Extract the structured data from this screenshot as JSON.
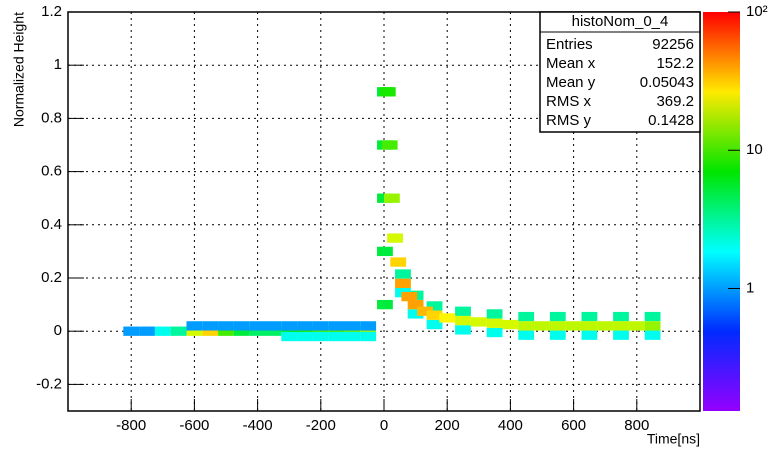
{
  "chart_data": {
    "type": "heatmap",
    "x_label": "Time[ns]",
    "y_label": "Normalized Height",
    "xlim": [
      -1000,
      1000
    ],
    "xticks": [
      -800,
      -600,
      -400,
      -200,
      0,
      200,
      400,
      600,
      800
    ],
    "ylim": [
      -0.3,
      1.2
    ],
    "yticks": [
      -0.2,
      0,
      0.2,
      0.4,
      0.6,
      0.8,
      1,
      1.2
    ],
    "zlim": [
      0.13,
      100
    ],
    "zlog": true,
    "zticks": [
      1,
      10,
      {
        "value": 100,
        "label": "10²"
      }
    ],
    "grid": true,
    "cells": {
      "x": [
        -800,
        -750,
        -700,
        -650,
        -600,
        -550,
        -500,
        -450,
        -400,
        -350,
        -300,
        -250,
        -200,
        -150,
        -100,
        -50,
        -600,
        -550,
        -500,
        -450,
        -400,
        -350,
        -300,
        -250,
        -200,
        -150,
        -100,
        -50,
        -300,
        -250,
        -200,
        -150,
        -100,
        -50,
        3,
        3,
        3,
        3,
        3,
        60,
        100,
        160,
        250,
        350,
        450,
        550,
        650,
        750,
        850,
        60,
        100,
        160,
        250,
        350,
        450,
        550,
        650,
        750,
        850,
        12,
        18,
        25,
        35,
        45,
        60,
        80,
        100,
        130,
        160,
        200,
        250,
        300,
        350,
        400,
        450,
        500,
        550,
        600,
        650,
        700,
        750,
        800,
        850
      ],
      "y": [
        0,
        0,
        0,
        0,
        0,
        0,
        0,
        0,
        0,
        0,
        0,
        0,
        0,
        0,
        0,
        0,
        0.02,
        0.02,
        0.02,
        0.02,
        0.02,
        0.02,
        0.02,
        0.02,
        0.02,
        0.02,
        0.02,
        0.02,
        -0.02,
        -0.02,
        -0.02,
        -0.02,
        -0.02,
        -0.02,
        0.1,
        0.3,
        0.5,
        0.7,
        0.9,
        0.215,
        0.135,
        0.095,
        0.075,
        0.065,
        0.055,
        0.055,
        0.055,
        0.055,
        0.055,
        0.145,
        0.065,
        0.025,
        0.005,
        -0.005,
        -0.015,
        -0.015,
        -0.015,
        -0.015,
        -0.015,
        0.9,
        0.7,
        0.5,
        0.35,
        0.26,
        0.18,
        0.13,
        0.1,
        0.075,
        0.06,
        0.05,
        0.04,
        0.035,
        0.03,
        0.025,
        0.02,
        0.02,
        0.02,
        0.02,
        0.02,
        0.02,
        0.02,
        0.02,
        0.02
      ],
      "z": [
        1,
        1,
        2,
        3,
        20,
        30,
        10,
        5,
        4,
        4,
        6,
        8,
        10,
        10,
        12,
        15,
        1,
        1,
        1,
        1,
        1,
        1,
        1,
        1,
        1,
        1,
        1,
        1,
        2,
        2,
        2,
        2,
        2,
        2,
        5,
        5,
        5,
        5,
        5,
        3,
        3,
        3,
        3,
        3,
        3,
        3,
        3,
        3,
        3,
        2,
        2,
        2,
        2,
        2,
        2,
        2,
        2,
        2,
        2,
        8,
        10,
        15,
        20,
        30,
        40,
        40,
        40,
        35,
        30,
        25,
        20,
        20,
        20,
        20,
        18,
        18,
        18,
        18,
        18,
        18,
        18,
        18,
        15
      ]
    },
    "stats": {
      "title": "histoNom_0_4",
      "rows": [
        {
          "label": "Entries",
          "value": 92256
        },
        {
          "label": "Mean x",
          "value": 152.2
        },
        {
          "label": "Mean y",
          "value": 0.05043
        },
        {
          "label": "RMS x",
          "value": 369.2
        },
        {
          "label": "RMS y",
          "value": 0.1428
        }
      ]
    }
  }
}
